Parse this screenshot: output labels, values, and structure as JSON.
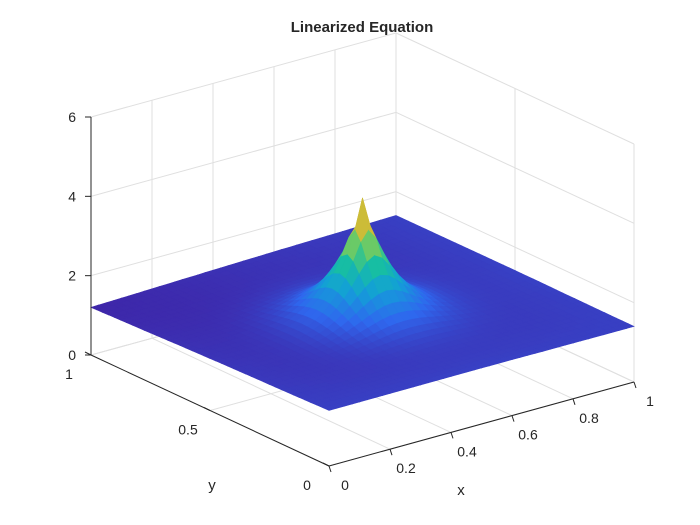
{
  "chart_data": {
    "type": "surface",
    "title": "Linearized Equation",
    "xlabel": "x",
    "ylabel": "y",
    "zlabel": "",
    "xlim": [
      0,
      1
    ],
    "ylim": [
      0,
      1
    ],
    "zlim": [
      0,
      6
    ],
    "x_ticks": [
      "0",
      "0.2",
      "0.4",
      "0.6",
      "0.8",
      "1"
    ],
    "y_ticks": [
      "0",
      "0.5",
      "1"
    ],
    "z_ticks": [
      "0",
      "2",
      "4",
      "6"
    ],
    "grid": true,
    "colormap": "parula",
    "colormap_colors": [
      "#3e26a8",
      "#2f67ee",
      "#139fd8",
      "#17bfa1",
      "#7dcc5a",
      "#e2b72f",
      "#f9fb15"
    ],
    "peak": {
      "x": 0.5,
      "y": 0.5,
      "z": 4.5
    },
    "z_at_x0_y1": 1.2,
    "z_at_x1_y0": 1.4,
    "baseline_z": 1.4
  }
}
